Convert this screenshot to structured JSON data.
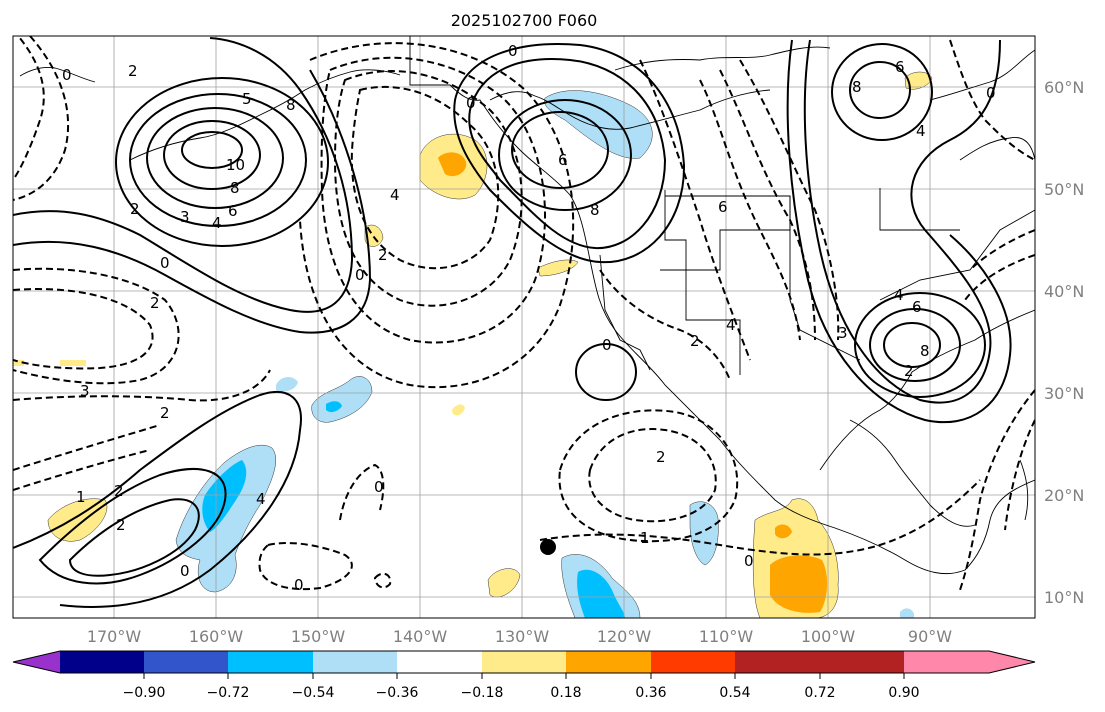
{
  "title": "2025102700 F060",
  "map": {
    "lat_labels": [
      "60°N",
      "50°N",
      "40°N",
      "30°N",
      "20°N",
      "10°N"
    ],
    "lon_labels": [
      "170°W",
      "160°W",
      "150°W",
      "140°W",
      "130°W",
      "120°W",
      "110°W",
      "100°W",
      "90°W"
    ],
    "contour_labels": [
      "0",
      "2",
      "5",
      "8",
      "10",
      "8",
      "6",
      "4",
      "3",
      "2",
      "0",
      "2",
      "3",
      "2",
      "0",
      "2",
      "0",
      "0",
      "4",
      "6",
      "8",
      "0",
      "6",
      "4",
      "2",
      "1",
      "0",
      "2",
      "3",
      "8",
      "6",
      "4",
      "8",
      "6",
      "4",
      "2",
      "0",
      "2",
      "1",
      "0",
      "0",
      "0",
      "4",
      "2"
    ],
    "point_marker": "location-dot"
  },
  "colorbar": {
    "ticks": [
      "−0.90",
      "−0.72",
      "−0.54",
      "−0.36",
      "−0.18",
      "0.18",
      "0.36",
      "0.54",
      "0.72",
      "0.90"
    ],
    "colors": [
      "#9932cc",
      "#00008b",
      "#3355cc",
      "#00bfff",
      "#aedff7",
      "#ffffff",
      "#ffeb8a",
      "#ffa500",
      "#ff3b00",
      "#b22222",
      "#ff88aa"
    ]
  }
}
